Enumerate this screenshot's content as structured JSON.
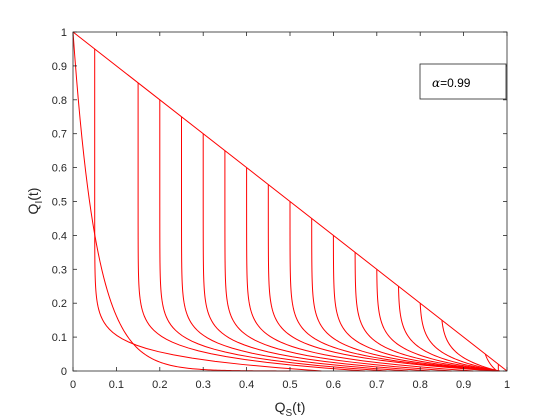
{
  "chart_data": {
    "type": "line",
    "xlabel_main": "Q",
    "xlabel_sub": "S",
    "xlabel_tail": "(t)",
    "ylabel_main": "Q",
    "ylabel_sub": "I",
    "ylabel_tail": "(t)",
    "xlim": [
      0,
      1
    ],
    "ylim": [
      0,
      1
    ],
    "xticks": [
      "0",
      "0.1",
      "0.2",
      "0.3",
      "0.4",
      "0.5",
      "0.6",
      "0.7",
      "0.8",
      "0.9",
      "1"
    ],
    "yticks": [
      "0",
      "0.1",
      "0.2",
      "0.3",
      "0.4",
      "0.5",
      "0.6",
      "0.7",
      "0.8",
      "0.9",
      "1"
    ],
    "grid": false,
    "line_color": "#ff0000",
    "legend": {
      "symbol": "α",
      "text": "=0.99",
      "placement": "top-right"
    },
    "boundary": {
      "x": [
        0,
        1
      ],
      "y": [
        1,
        0
      ]
    },
    "trajectories": {
      "start_x": [
        0.0,
        0.05,
        0.15,
        0.2,
        0.25,
        0.3,
        0.35,
        0.4,
        0.45,
        0.5,
        0.55,
        0.6,
        0.65,
        0.7,
        0.75,
        0.8,
        0.85,
        0.95
      ],
      "end_x": [
        0.0,
        0.05,
        0.1,
        0.15,
        0.2,
        0.25,
        0.3,
        0.35,
        0.4,
        0.45,
        0.5,
        0.55,
        0.6,
        0.65,
        0.7,
        0.75,
        0.8,
        0.9
      ],
      "extra_small": [
        {
          "start_x": 0.98,
          "end_x": 0.98
        }
      ]
    }
  }
}
